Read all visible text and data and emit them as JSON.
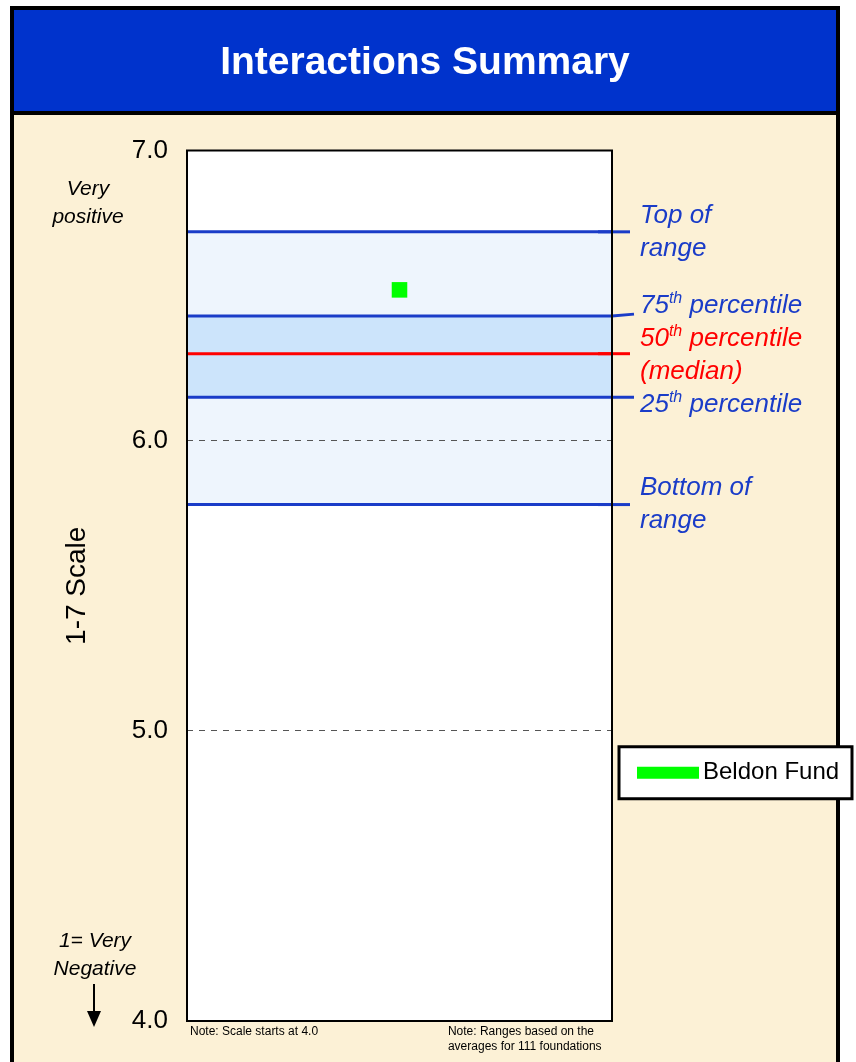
{
  "chart_data": {
    "type": "scatter",
    "title": "Interactions Summary",
    "ylabel": "1-7 Scale",
    "categories": [
      null
    ],
    "series": [
      {
        "name": "Beldon Fund",
        "color": "#00ff00",
        "values": [
          6.52
        ]
      }
    ],
    "ylim": [
      4,
      7
    ],
    "yticks": [
      {
        "value": 4,
        "label": "4.0"
      },
      {
        "value": 5,
        "label": "5.0"
      },
      {
        "value": 6,
        "label": "6.0"
      },
      {
        "value": 7,
        "label": "7.0"
      }
    ],
    "grid": "y",
    "legend": "right",
    "marker": "square",
    "bands": [
      {
        "axis": "y",
        "from": 5.78,
        "to": 6.72,
        "color": "#eef5fd"
      },
      {
        "axis": "y",
        "from": 6.15,
        "to": 6.43,
        "color": "#cce4fb"
      }
    ],
    "ref_lines": [
      {
        "axis": "y",
        "value": 6.72,
        "label": "Top of\nrange",
        "color": "#1a3cc8"
      },
      {
        "axis": "y",
        "value": 6.43,
        "label": "75$^{th}$ percentile",
        "color": "#1a3cc8"
      },
      {
        "axis": "y",
        "value": 6.3,
        "label": "50$^{th}$ percentile\n(median)",
        "color": "#ff0000"
      },
      {
        "axis": "y",
        "value": 6.15,
        "label": "25$^{th}$ percentile",
        "color": "#1a3cc8"
      },
      {
        "axis": "y",
        "value": 5.78,
        "label": "Bottom of\nrange",
        "color": "#1a3cc8"
      }
    ],
    "annotations": [
      "Very positive",
      "1= Very Negative",
      "Note: Scale starts at 4.0",
      "Note: Ranges based on the averages for 111 foundations"
    ]
  }
}
